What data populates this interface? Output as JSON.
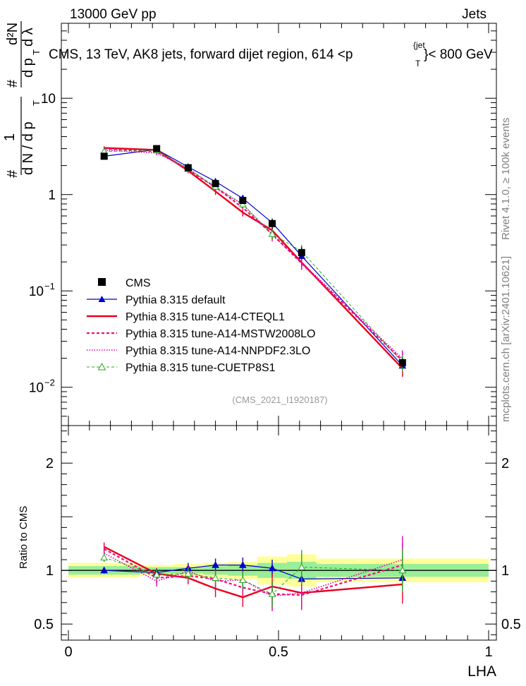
{
  "header": {
    "energy": "13000 GeV pp",
    "process": "Jets"
  },
  "side_labels": {
    "rivet": "Rivet 4.1.0, ≥ 100k events",
    "mcplots": "mcplots.cern.ch [arXiv:2401.10621]"
  },
  "colors": {
    "cms": "#000000",
    "default": "#0000cc",
    "cteql1": "#e8001c",
    "mstw": "#ee1177",
    "nnpdf": "#dd00aa",
    "cuetp8s1": "#22aa22",
    "band_outer": "#ffff99",
    "band_inner": "#99ee99"
  },
  "chart_data": {
    "type": "line",
    "title": "CMS, 13 TeV, AK8 jets, forward dijet region, 614 <p",
    "title_sup": "{jet",
    "title_sub": "T",
    "title_end": "}< 800 GeV",
    "analysis_id": "(CMS_2021_I1920187)",
    "xlabel": "LHA",
    "ylabel_parts": [
      "#",
      "d N / d p",
      "T",
      "1",
      "d p",
      "T",
      "#",
      "d λ",
      "d²N"
    ],
    "ratio_ylabel": "Ratio to CMS",
    "xlim": [
      0,
      1
    ],
    "ylim": [
      0.004,
      60
    ],
    "yscale": "log",
    "ratio_ylim": [
      0.35,
      2.35
    ],
    "x_ticks": [
      {
        "value": 0,
        "label": "0"
      },
      {
        "value": 0.5,
        "label": "0.5"
      },
      {
        "value": 1,
        "label": "1"
      }
    ],
    "y_ticks": [
      {
        "value": 10,
        "label": "10"
      },
      {
        "value": 1,
        "label": "1"
      },
      {
        "value": 0.1,
        "label": "10",
        "sup": "−1"
      },
      {
        "value": 0.01,
        "label": "10",
        "sup": "−2"
      }
    ],
    "ratio_ticks": [
      {
        "value": 2,
        "label": "2"
      },
      {
        "value": 1,
        "label": "1"
      },
      {
        "value": 0.5,
        "label": "0.5"
      }
    ],
    "bin_edges": [
      0,
      0.17,
      0.25,
      0.32,
      0.38,
      0.45,
      0.52,
      0.59,
      1.0
    ],
    "x": [
      0.085,
      0.21,
      0.285,
      0.35,
      0.415,
      0.485,
      0.555,
      0.795
    ],
    "data": {
      "name": "CMS",
      "values": [
        2.5,
        3.0,
        1.9,
        1.3,
        0.87,
        0.5,
        0.25,
        0.018
      ],
      "band_outer": [
        0.07,
        0.05,
        0.06,
        0.07,
        0.08,
        0.13,
        0.15,
        0.11
      ],
      "band_inner": [
        0.04,
        0.03,
        0.03,
        0.04,
        0.05,
        0.07,
        0.08,
        0.06
      ]
    },
    "series": [
      {
        "name": "Pythia 8.315 default",
        "key": "default",
        "marker": "triangle",
        "ratio": [
          1.0,
          0.98,
          1.02,
          1.05,
          1.05,
          1.02,
          0.92,
          0.93
        ],
        "ratio_err": [
          0.03,
          0.04,
          0.05,
          0.06,
          0.07,
          0.08,
          0.1,
          0.1
        ]
      },
      {
        "name": "Pythia 8.315 tune-A14-CTEQL1",
        "key": "cteql1",
        "marker": "none",
        "ratio": [
          1.22,
          0.97,
          0.93,
          0.83,
          0.75,
          0.85,
          0.79,
          0.87
        ],
        "ratio_err": [
          0.04,
          0.05,
          0.06,
          0.08,
          0.09,
          0.12,
          0.14,
          0.18
        ]
      },
      {
        "name": "Pythia 8.315 tune-A14-MSTW2008LO",
        "key": "mstw",
        "marker": "none",
        "ratio": [
          1.2,
          0.93,
          0.95,
          0.92,
          0.84,
          0.78,
          0.77,
          1.05
        ],
        "ratio_err": [
          0.04,
          0.05,
          0.06,
          0.08,
          0.09,
          0.12,
          0.14,
          0.2
        ]
      },
      {
        "name": "Pythia 8.315 tune-A14-NNPDF2.3LO",
        "key": "nnpdf",
        "marker": "none",
        "ratio": [
          1.16,
          0.9,
          0.99,
          0.9,
          0.91,
          0.76,
          0.79,
          1.1
        ],
        "ratio_err": [
          0.04,
          0.05,
          0.06,
          0.08,
          0.09,
          0.14,
          0.15,
          0.22
        ]
      },
      {
        "name": "Pythia 8.315 tune-CUETP8S1",
        "key": "cuetp8s1",
        "marker": "open-triangle",
        "ratio": [
          1.12,
          0.96,
          0.97,
          0.93,
          0.91,
          0.78,
          1.03,
          1.0
        ],
        "ratio_err": [
          0.04,
          0.05,
          0.06,
          0.07,
          0.08,
          0.12,
          0.16,
          0.2
        ]
      }
    ]
  }
}
